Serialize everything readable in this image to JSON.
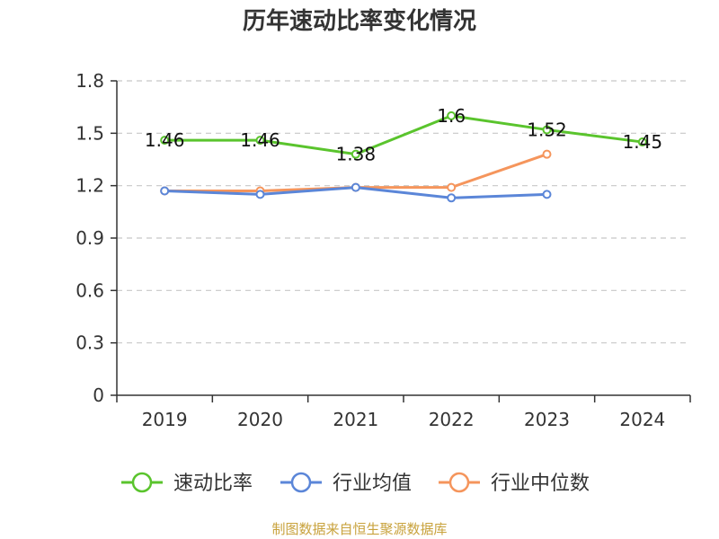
{
  "chart_data": {
    "type": "line",
    "title": "历年速动比率变化情况",
    "categories": [
      "2019",
      "2020",
      "2021",
      "2022",
      "2023",
      "2024"
    ],
    "y_ticks": [
      "0",
      "0.3",
      "0.6",
      "0.9",
      "1.2",
      "1.5",
      "1.8"
    ],
    "ylim": [
      0,
      1.8
    ],
    "grid": "horizontal-dashed",
    "legend_position": "bottom",
    "series": [
      {
        "name": "速动比率",
        "color": "#5ac42d",
        "values": [
          1.46,
          1.46,
          1.38,
          1.6,
          1.52,
          1.45
        ],
        "labels": [
          "1.46",
          "1.46",
          "1.38",
          "1.6",
          "1.52",
          "1.45"
        ]
      },
      {
        "name": "行业均值",
        "color": "#5b86d8",
        "values": [
          1.17,
          1.15,
          1.19,
          1.13,
          1.15,
          null
        ]
      },
      {
        "name": "行业中位数",
        "color": "#f5955c",
        "values": [
          1.17,
          1.17,
          1.19,
          1.19,
          1.38,
          null
        ]
      }
    ],
    "source": "制图数据来自恒生聚源数据库"
  }
}
